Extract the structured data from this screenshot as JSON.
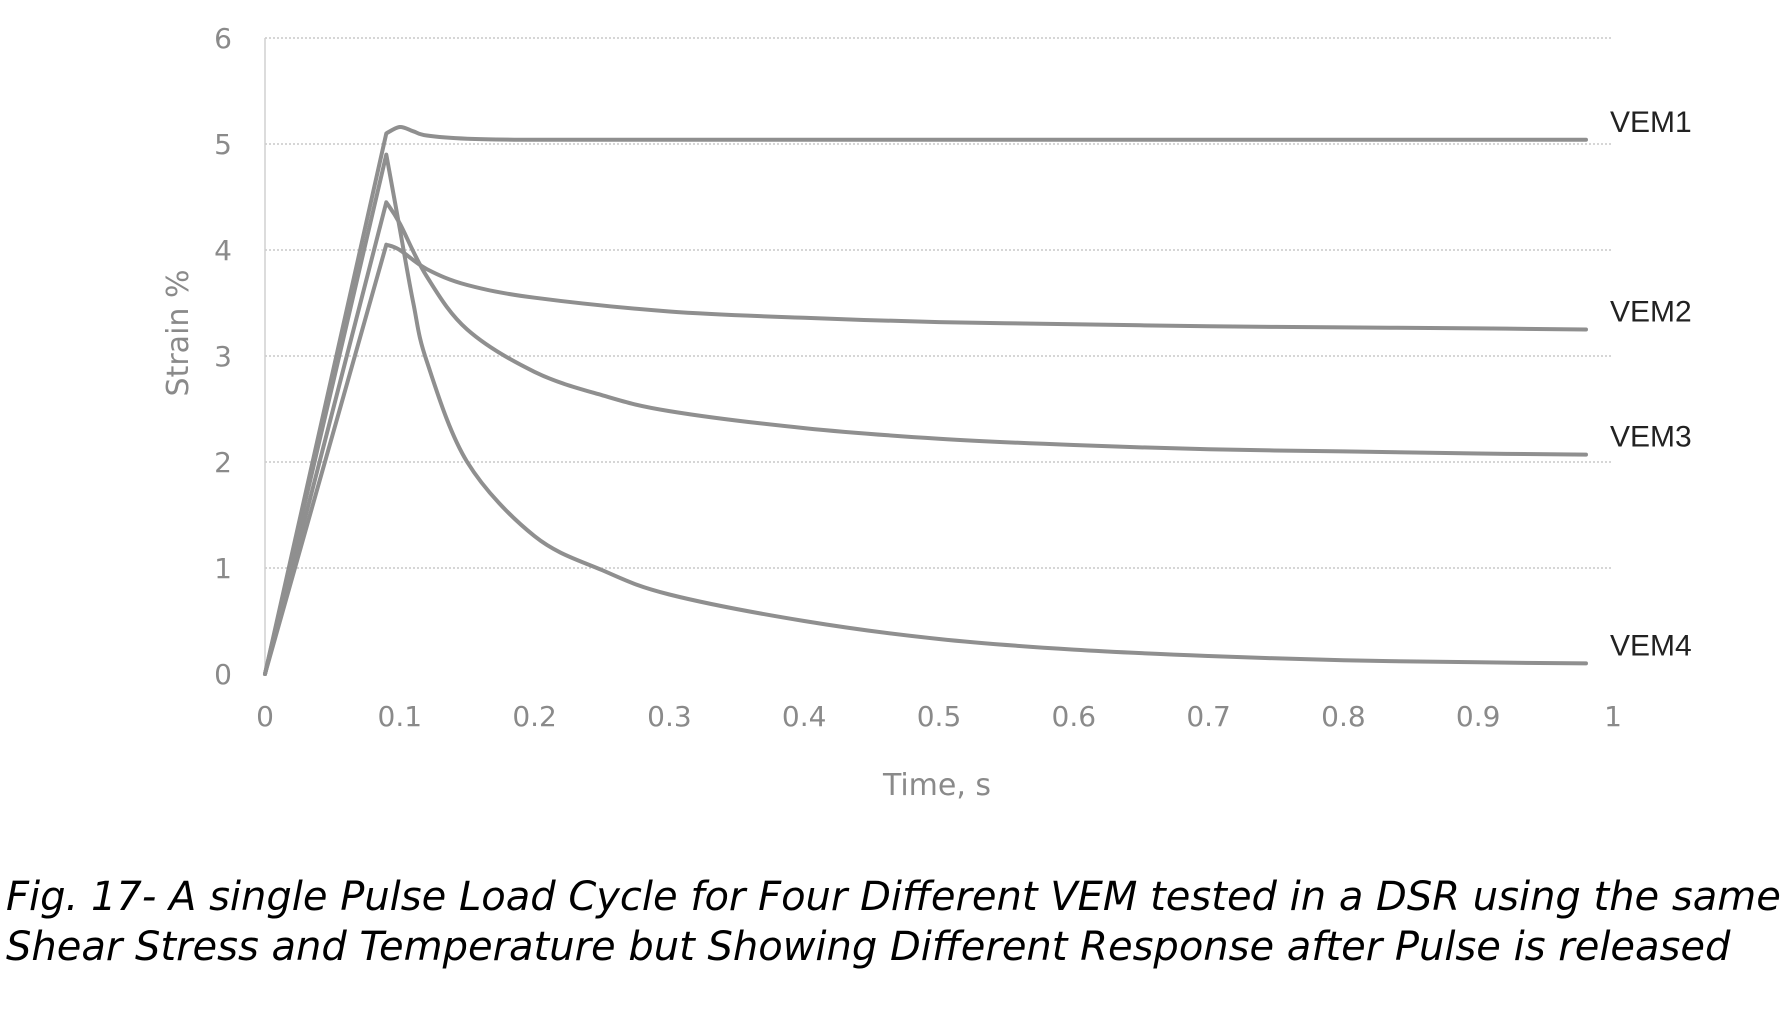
{
  "chart_data": {
    "type": "line",
    "title": "",
    "xlabel": "Time, s",
    "ylabel": "Strain  %",
    "xlim": [
      0,
      1
    ],
    "ylim": [
      0,
      6
    ],
    "xticks": [
      "0",
      "0.1",
      "0.2",
      "0.3",
      "0.4",
      "0.5",
      "0.6",
      "0.7",
      "0.8",
      "0.9",
      "1"
    ],
    "yticks": [
      "0",
      "1",
      "2",
      "3",
      "4",
      "5",
      "6"
    ],
    "grid": "horizontal dotted",
    "legend": "labels at right end of each line",
    "series": [
      {
        "name": "VEM1",
        "x": [
          0,
          0.09,
          0.1,
          0.11,
          0.12,
          0.15,
          0.2,
          0.3,
          0.5,
          0.7,
          0.9,
          0.98
        ],
        "y": [
          0,
          5.1,
          5.16,
          5.12,
          5.08,
          5.05,
          5.04,
          5.04,
          5.04,
          5.04,
          5.04,
          5.04
        ]
      },
      {
        "name": "VEM2",
        "x": [
          0,
          0.09,
          0.1,
          0.12,
          0.15,
          0.2,
          0.3,
          0.4,
          0.5,
          0.6,
          0.7,
          0.8,
          0.9,
          0.98
        ],
        "y": [
          0,
          4.05,
          4.0,
          3.82,
          3.67,
          3.55,
          3.42,
          3.36,
          3.32,
          3.3,
          3.28,
          3.27,
          3.26,
          3.25
        ]
      },
      {
        "name": "VEM3",
        "x": [
          0,
          0.09,
          0.1,
          0.12,
          0.15,
          0.2,
          0.25,
          0.3,
          0.4,
          0.5,
          0.6,
          0.7,
          0.8,
          0.9,
          0.98
        ],
        "y": [
          0,
          4.45,
          4.25,
          3.75,
          3.25,
          2.85,
          2.63,
          2.48,
          2.32,
          2.22,
          2.16,
          2.12,
          2.1,
          2.08,
          2.07
        ]
      },
      {
        "name": "VEM4",
        "x": [
          0,
          0.09,
          0.1,
          0.11,
          0.12,
          0.15,
          0.2,
          0.25,
          0.3,
          0.4,
          0.5,
          0.6,
          0.7,
          0.8,
          0.9,
          0.98
        ],
        "y": [
          0,
          4.9,
          4.2,
          3.5,
          2.95,
          2.0,
          1.3,
          0.98,
          0.75,
          0.5,
          0.33,
          0.23,
          0.17,
          0.13,
          0.11,
          0.1
        ]
      }
    ]
  },
  "caption": {
    "line1": "Fig. 17- A single Pulse Load Cycle for Four Different VEM tested in a DSR using the same",
    "line2": "Shear Stress and Temperature but Showing Different Response after Pulse is released"
  }
}
